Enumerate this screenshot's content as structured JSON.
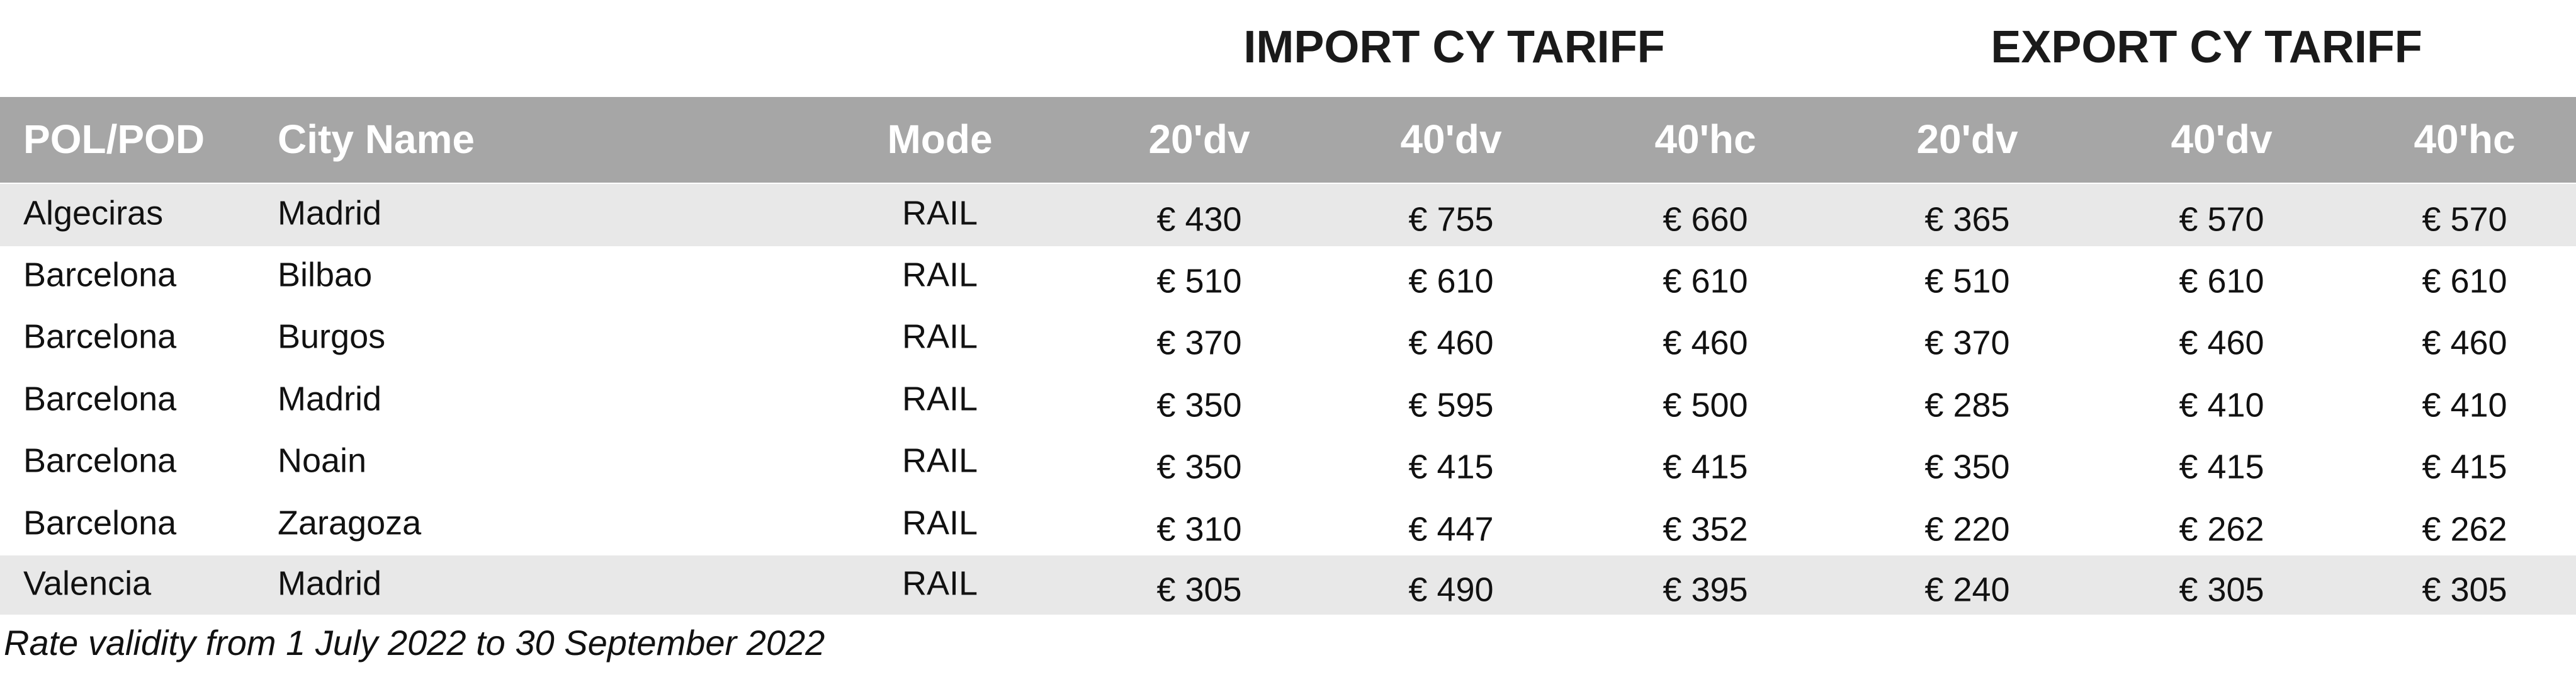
{
  "header": {
    "import_title": "IMPORT CY TARIFF",
    "export_title": "EXPORT CY TARIFF"
  },
  "table": {
    "columns": [
      "POL/POD",
      "City Name",
      "Mode",
      "20'dv",
      "40'dv",
      "40'hc",
      "20'dv",
      "40'dv",
      "40'hc"
    ],
    "rows": [
      [
        "Algeciras",
        "Madrid",
        "RAIL",
        "€ 430",
        "€ 755",
        "€ 660",
        "€ 365",
        "€ 570",
        "€ 570"
      ],
      [
        "Barcelona",
        "Bilbao",
        "RAIL",
        "€ 510",
        "€ 610",
        "€ 610",
        "€ 510",
        "€ 610",
        "€ 610"
      ],
      [
        "Barcelona",
        "Burgos",
        "RAIL",
        "€ 370",
        "€ 460",
        "€ 460",
        "€ 370",
        "€ 460",
        "€ 460"
      ],
      [
        "Barcelona",
        "Madrid",
        "RAIL",
        "€ 350",
        "€ 595",
        "€ 500",
        "€ 285",
        "€ 410",
        "€ 410"
      ],
      [
        "Barcelona",
        "Noain",
        "RAIL",
        "€ 350",
        "€ 415",
        "€ 415",
        "€ 350",
        "€ 415",
        "€ 415"
      ],
      [
        "Barcelona",
        "Zaragoza",
        "RAIL",
        "€ 310",
        "€ 447",
        "€ 352",
        "€ 220",
        "€ 262",
        "€ 262"
      ],
      [
        "Valencia",
        "Madrid",
        "RAIL",
        "€ 305",
        "€ 490",
        "€ 395",
        "€ 240",
        "€ 305",
        "€ 305"
      ]
    ]
  },
  "footnote": "Rate validity from 1 July 2022 to 30 September 2022"
}
